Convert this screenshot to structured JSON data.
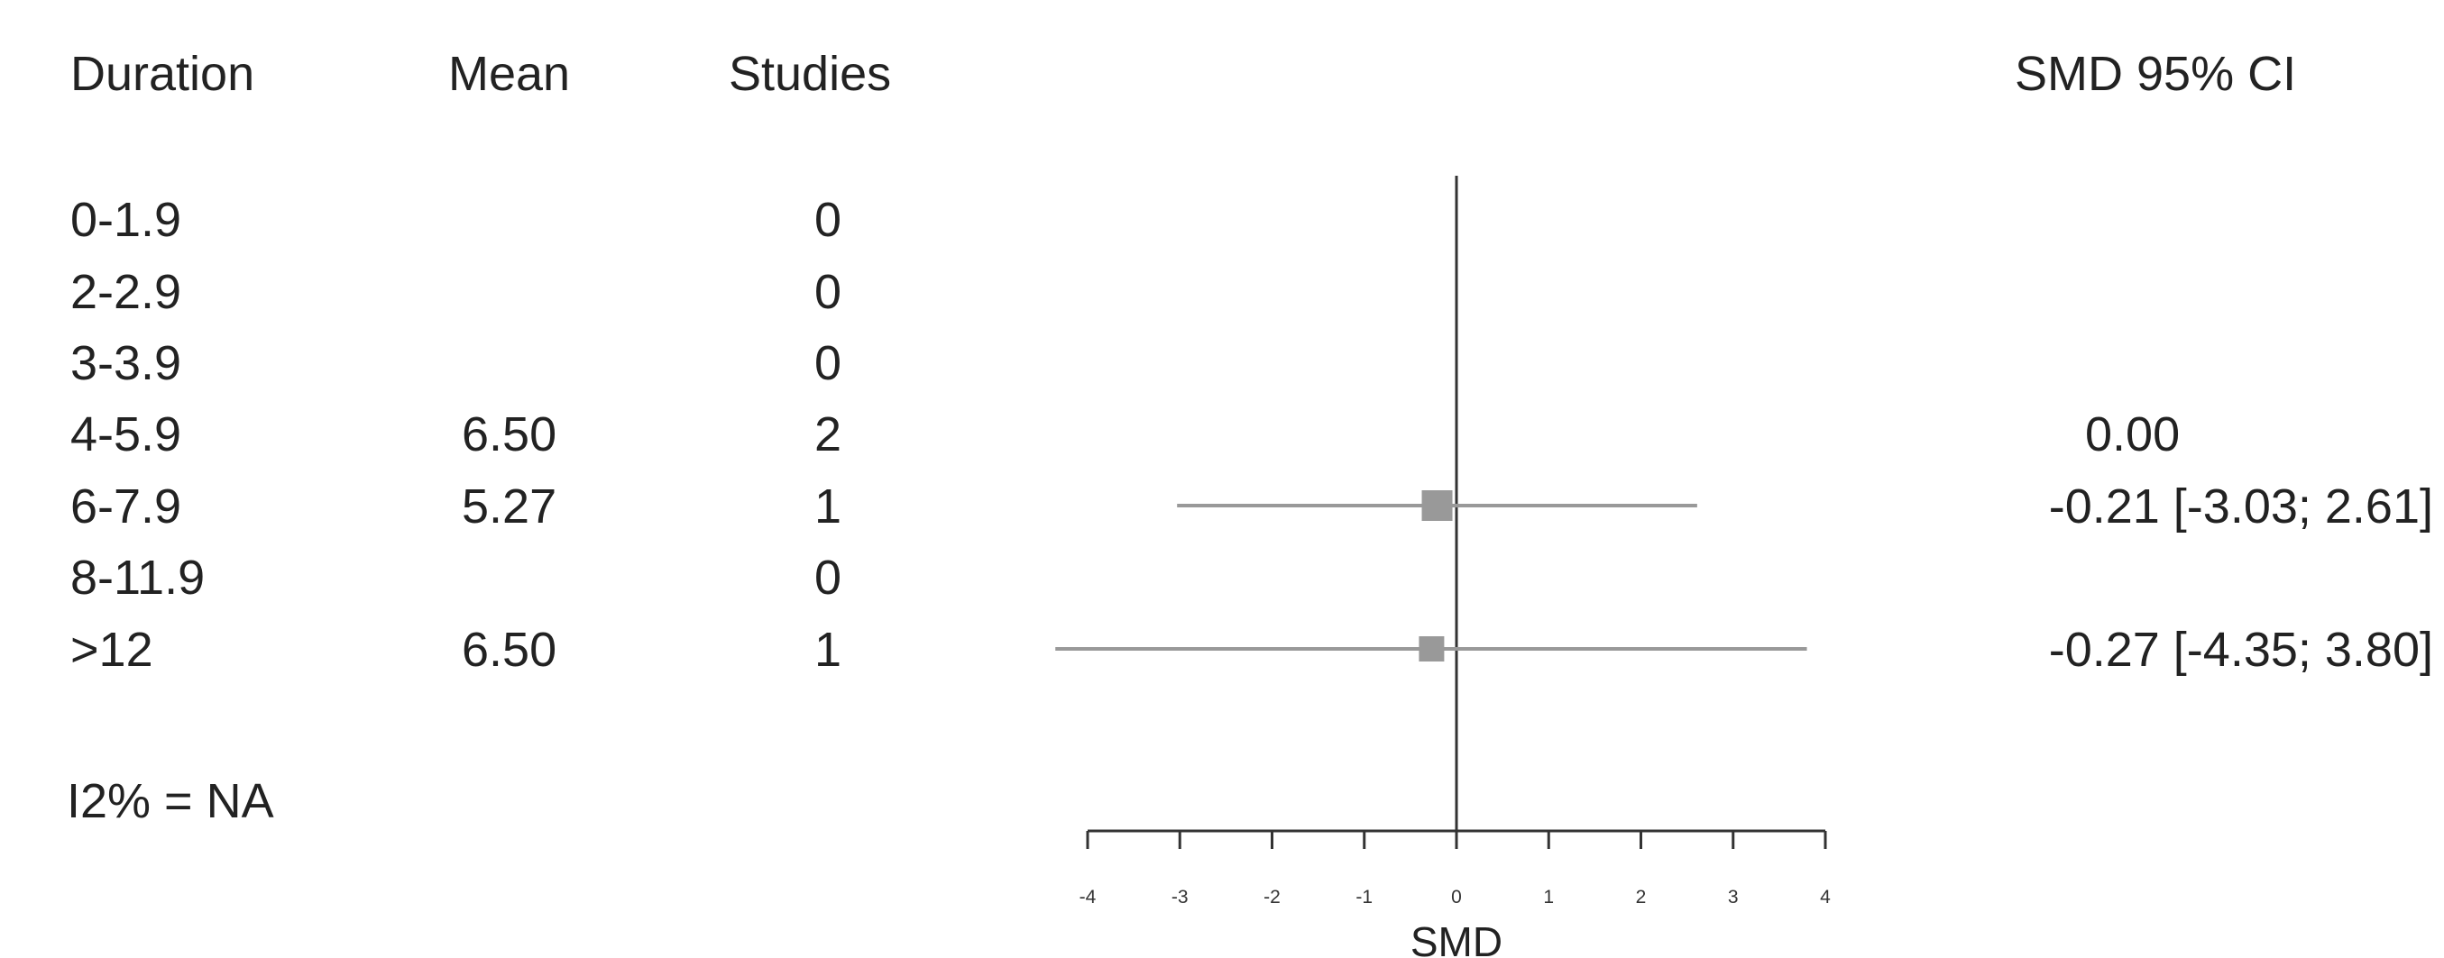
{
  "headers": {
    "duration": "Duration",
    "mean": "Mean",
    "studies": "Studies",
    "ci": "SMD 95% CI"
  },
  "rows": [
    {
      "duration": "0-1.9",
      "mean": "",
      "studies": "0",
      "ci": ""
    },
    {
      "duration": "2-2.9",
      "mean": "",
      "studies": "0",
      "ci": ""
    },
    {
      "duration": "3-3.9",
      "mean": "",
      "studies": "0",
      "ci": ""
    },
    {
      "duration": "4-5.9",
      "mean": "6.50",
      "studies": "2",
      "ci": "0.00"
    },
    {
      "duration": "6-7.9",
      "mean": "5.27",
      "studies": "1",
      "ci": "-0.21 [-3.03; 2.61]"
    },
    {
      "duration": "8-11.9",
      "mean": "",
      "studies": "0",
      "ci": ""
    },
    {
      "duration": ">12",
      "mean": "6.50",
      "studies": "1",
      "ci": "-0.27 [-4.35; 3.80]"
    }
  ],
  "heterogeneity": "I2% = NA",
  "chart_data": {
    "type": "forest",
    "xlabel": "SMD",
    "xlim": [
      -4,
      4
    ],
    "xticks": [
      "-4",
      "-3",
      "-2",
      "-1",
      "0",
      "1",
      "2",
      "3",
      "4"
    ],
    "reference_line": 0,
    "estimates": [
      {
        "label": "6-7.9",
        "row": 4,
        "smd": -0.21,
        "lower": -3.03,
        "upper": 2.61
      },
      {
        "label": ">12",
        "row": 6,
        "smd": -0.27,
        "lower": -4.35,
        "upper": 3.8
      }
    ],
    "colors": {
      "marker": "#999999",
      "ci_line": "#999999",
      "axis": "#333333"
    }
  }
}
